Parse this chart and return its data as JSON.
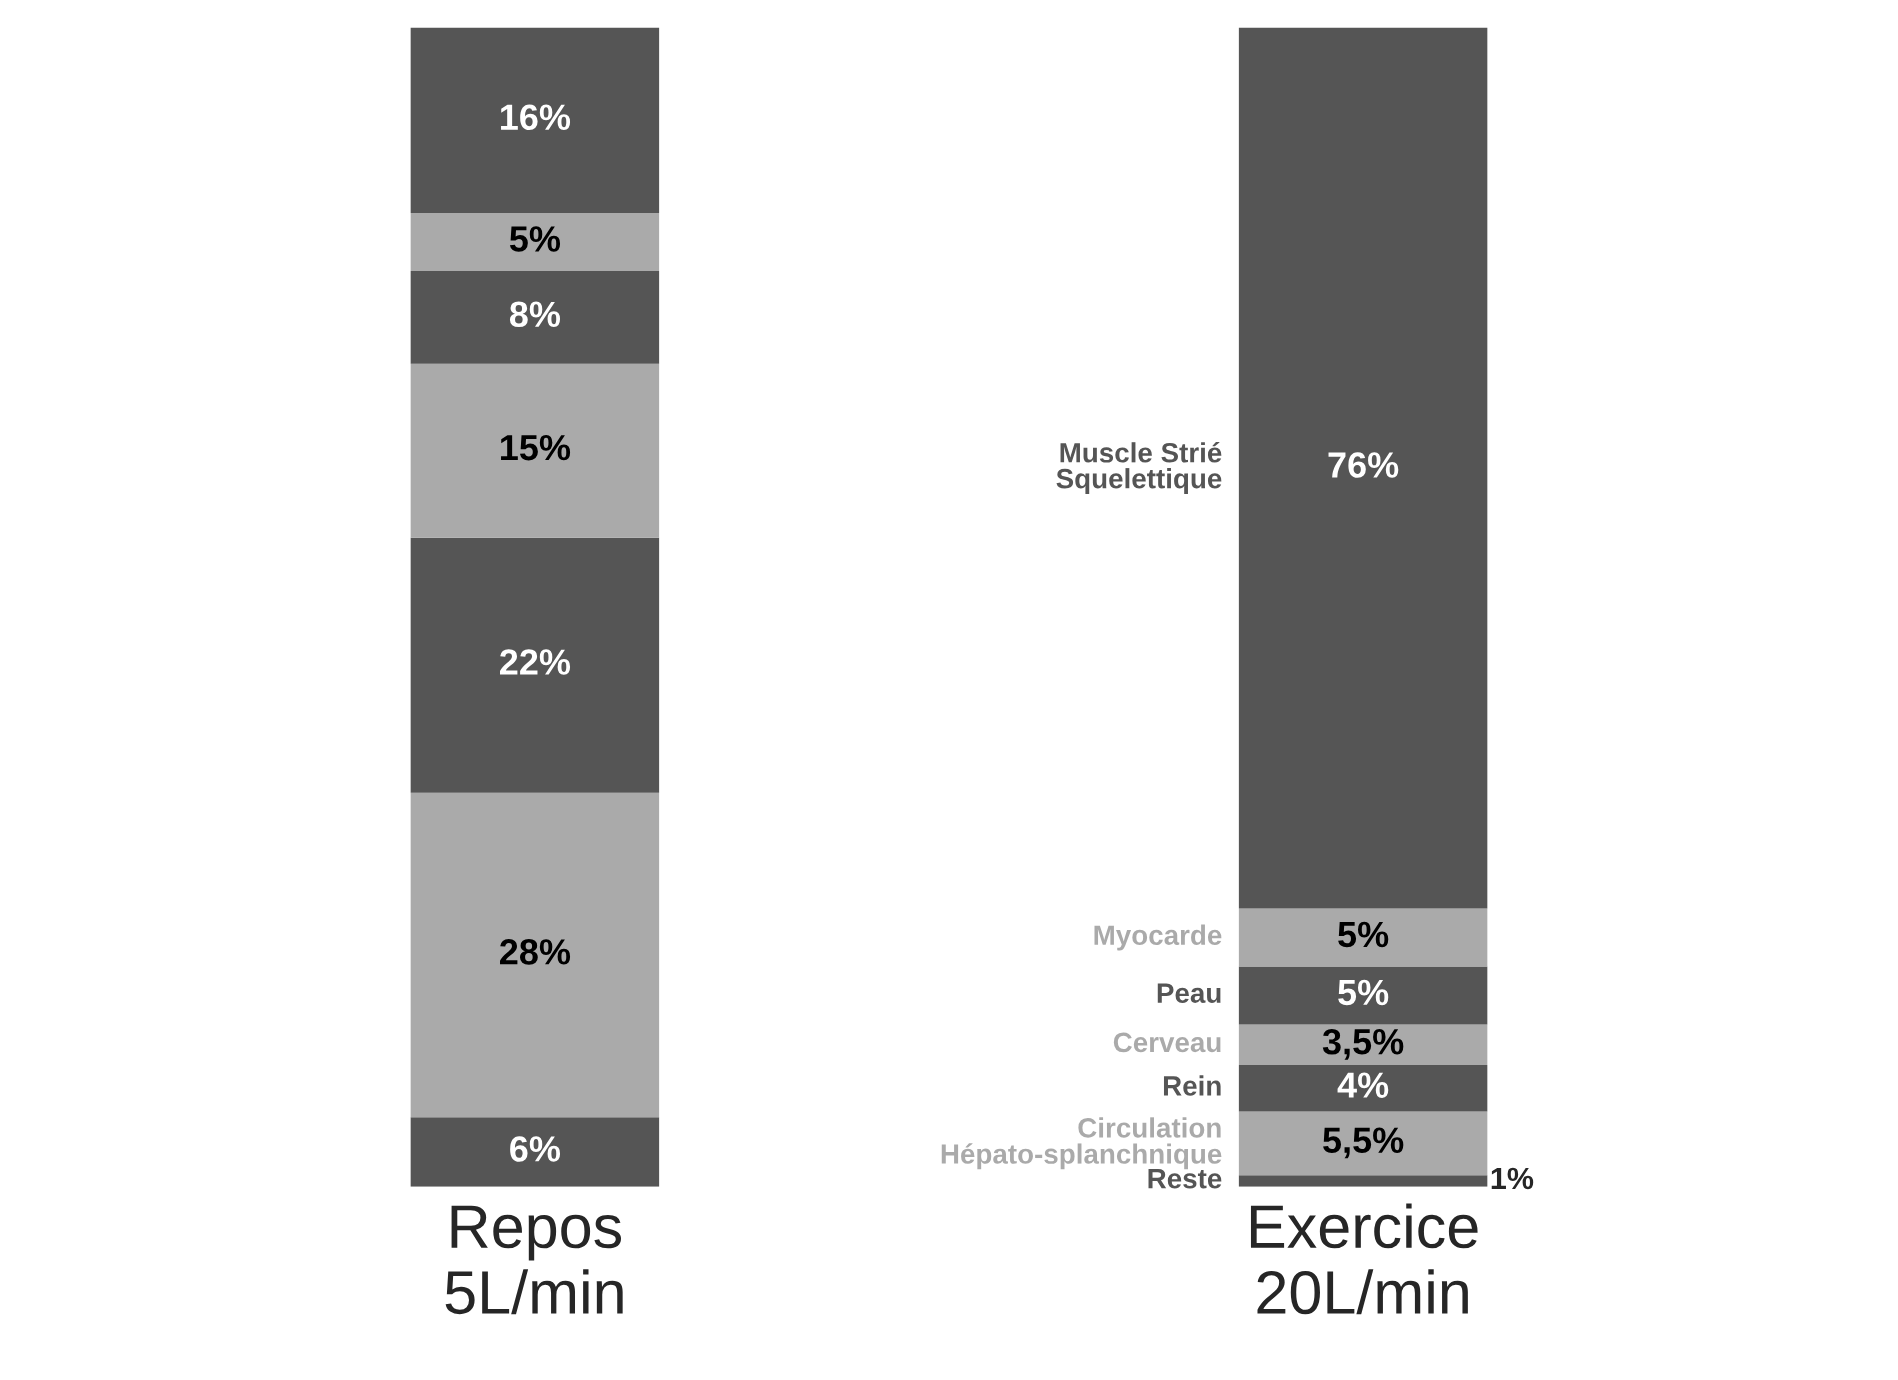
{
  "chart_data": {
    "type": "bar",
    "stacked": true,
    "categories": [
      "Repos\n5L/min",
      "Exercice\n20L/min"
    ],
    "series": [
      {
        "name": "Reste",
        "color": "#555555",
        "values": [
          6,
          1
        ],
        "value_labels": [
          "6%",
          "1%"
        ]
      },
      {
        "name": "Circulation\nHépato-splanchnique",
        "color": "#aaaaaa",
        "values": [
          28,
          5.5
        ],
        "value_labels": [
          "28%",
          "5,5%"
        ]
      },
      {
        "name": "Rein",
        "color": "#555555",
        "values": [
          22,
          4
        ],
        "value_labels": [
          "22%",
          "4%"
        ]
      },
      {
        "name": "Cerveau",
        "color": "#aaaaaa",
        "values": [
          15,
          3.5
        ],
        "value_labels": [
          "15%",
          "3,5%"
        ]
      },
      {
        "name": "Peau",
        "color": "#555555",
        "values": [
          8,
          5
        ],
        "value_labels": [
          "8%",
          "5%"
        ]
      },
      {
        "name": "Myocarde",
        "color": "#aaaaaa",
        "values": [
          5,
          5
        ],
        "value_labels": [
          "5%",
          "5%"
        ]
      },
      {
        "name": "Muscle Strié\nSquelettique",
        "color": "#555555",
        "values": [
          16,
          76
        ],
        "value_labels": [
          "16%",
          "76%"
        ]
      }
    ],
    "ylim": [
      0,
      100
    ],
    "tick_labels": "x",
    "legend": false
  }
}
